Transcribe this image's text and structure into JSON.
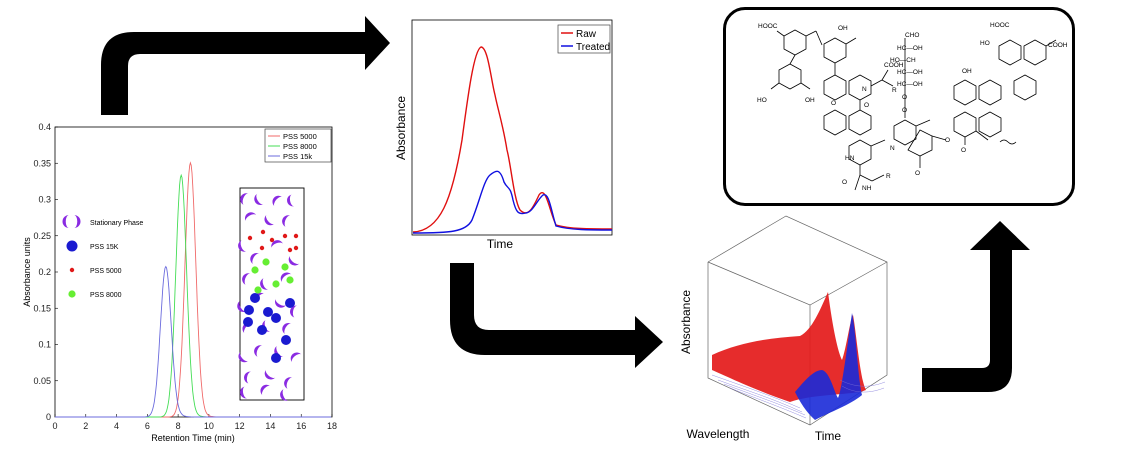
{
  "panel_hplc": {
    "chart_data": {
      "type": "line",
      "xlabel": "Retention Time (min)",
      "ylabel": "Absorbance units",
      "xlim": [
        0,
        18
      ],
      "ylim": [
        0,
        0.4
      ],
      "x_ticks": [
        "0",
        "2",
        "4",
        "6",
        "8",
        "10",
        "12",
        "14",
        "16",
        "18"
      ],
      "y_ticks": [
        "0",
        "0.05",
        "0.1",
        "0.15",
        "0.2",
        "0.25",
        "0.3",
        "0.35",
        "0.4"
      ],
      "legend_position": "top-right",
      "series": [
        {
          "name": "PSS 5000",
          "color": "#f06a6a",
          "peak_x": 8.8,
          "peak_y": 0.35
        },
        {
          "name": "PSS 8000",
          "color": "#44dd55",
          "peak_x": 8.2,
          "peak_y": 0.333
        },
        {
          "name": "PSS 15k",
          "color": "#6b6bdd",
          "peak_x": 7.2,
          "peak_y": 0.207
        }
      ]
    },
    "key": [
      {
        "label": "Stationary Phase",
        "color": "#8a2be2",
        "shape": "crescent"
      },
      {
        "label": "PSS 15K",
        "color": "#1a1ad0",
        "shape": "big-dot"
      },
      {
        "label": "PSS 5000",
        "color": "#e01818",
        "shape": "small-dot"
      },
      {
        "label": "PSS 8000",
        "color": "#66ee33",
        "shape": "mid-dot"
      }
    ]
  },
  "panel_chromatogram": {
    "chart_data": {
      "type": "line",
      "xlabel": "Time",
      "ylabel": "Absorbance",
      "legend_position": "top-right",
      "series": [
        {
          "name": "Raw",
          "color": "#e01010"
        },
        {
          "name": "Treated",
          "color": "#1010e0"
        }
      ]
    }
  },
  "panel_3d": {
    "xlabel": "Wavelength",
    "ylabel": "Absorbance",
    "zlabel": "Time",
    "colors": {
      "raw": "#e41a1a",
      "treated": "#1a2ad8"
    }
  },
  "panel_structure": {
    "groups": {
      "cooh_tl": "HOOC",
      "oh_a": "OH",
      "oh_b": "HO",
      "oh_c": "OH",
      "cooh_mid": "COOH",
      "r_mid": "R",
      "n_mid": "N",
      "o_ring": "O",
      "o_quinone": "O",
      "cho": "CHO",
      "hc_oh_1": "HC—OH",
      "ho_ch": "HO—CH",
      "hc_oh_2": "HC—OH",
      "hc_oh_3": "HC—OH",
      "o_link": "O",
      "o_link2": "O",
      "hooc_r": "HOOC",
      "ho_r": "HO",
      "oh_r": "OH",
      "cooh_r": "COOH",
      "hn": "HN",
      "r_low": "R",
      "nh": "NH",
      "o_amide": "O",
      "n_ring": "N",
      "o_r1": "O",
      "o_r2": "O",
      "o_r3": "O"
    }
  },
  "arrows": {
    "color": "#000000"
  }
}
